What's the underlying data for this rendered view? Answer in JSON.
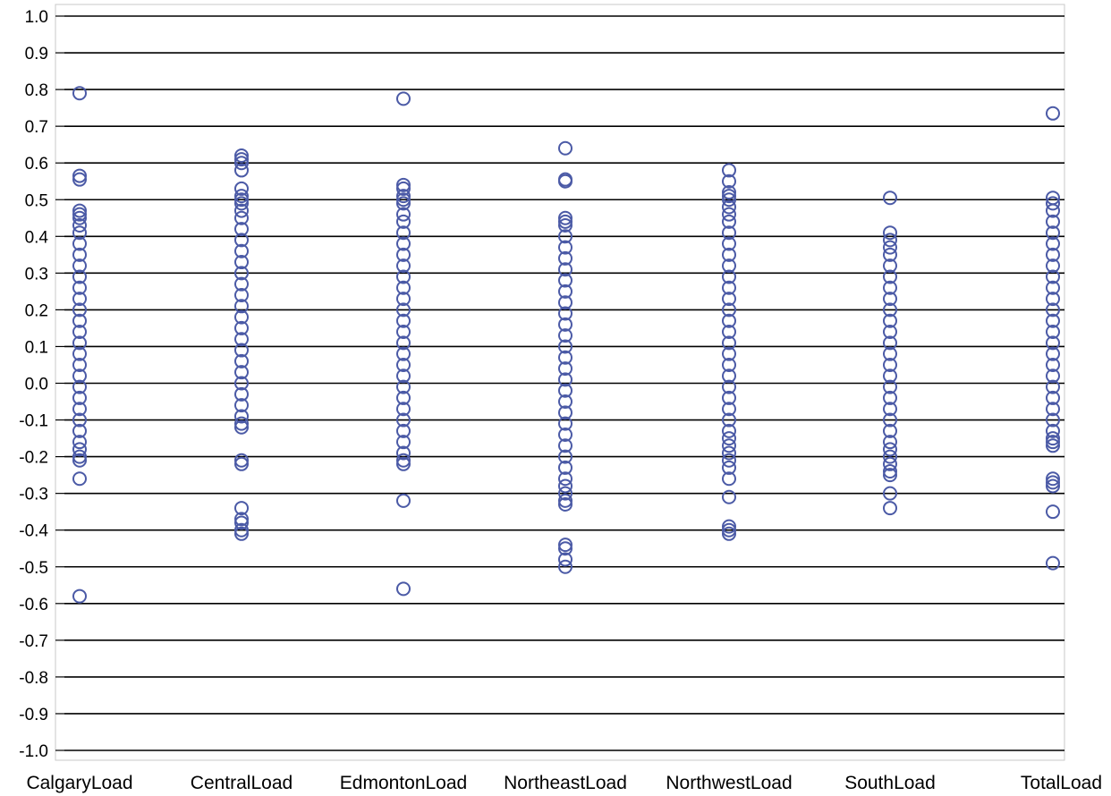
{
  "colors": {
    "marker": "#4b5aa6",
    "gridline": "#000000",
    "frame": "#c8c8c8",
    "background": "#ffffff"
  },
  "chart_data": {
    "type": "scatter",
    "title": "",
    "xlabel": "",
    "ylabel": "",
    "ylim": [
      -1.0,
      1.0
    ],
    "grid": true,
    "marker": "open-circle",
    "y_ticks": [
      "1.0",
      "0.9",
      "0.8",
      "0.7",
      "0.6",
      "0.5",
      "0.4",
      "0.3",
      "0.2",
      "0.1",
      "0.0",
      "-0.1",
      "-0.2",
      "-0.3",
      "-0.4",
      "-0.5",
      "-0.6",
      "-0.7",
      "-0.8",
      "-0.9",
      "-1.0"
    ],
    "categories": [
      "CalgaryLoad",
      "CentralLoad",
      "EdmontonLoad",
      "NortheastLoad",
      "NorthwestLoad",
      "SouthLoad",
      "TotalLoad"
    ],
    "series": [
      {
        "category": "CalgaryLoad",
        "values": [
          0.79,
          0.565,
          0.555,
          0.47,
          0.46,
          0.45,
          0.43,
          0.41,
          0.38,
          0.35,
          0.32,
          0.29,
          0.26,
          0.23,
          0.2,
          0.17,
          0.14,
          0.11,
          0.08,
          0.05,
          0.02,
          -0.01,
          -0.04,
          -0.07,
          -0.1,
          -0.13,
          -0.16,
          -0.18,
          -0.2,
          -0.21,
          -0.26,
          -0.58
        ]
      },
      {
        "category": "CentralLoad",
        "values": [
          0.62,
          0.61,
          0.6,
          0.58,
          0.53,
          0.51,
          0.5,
          0.49,
          0.47,
          0.45,
          0.42,
          0.39,
          0.36,
          0.33,
          0.3,
          0.27,
          0.24,
          0.21,
          0.18,
          0.15,
          0.12,
          0.09,
          0.06,
          0.03,
          0.0,
          -0.03,
          -0.06,
          -0.09,
          -0.11,
          -0.12,
          -0.21,
          -0.22,
          -0.34,
          -0.37,
          -0.38,
          -0.4,
          -0.41
        ]
      },
      {
        "category": "EdmontonLoad",
        "values": [
          0.775,
          0.54,
          0.53,
          0.51,
          0.5,
          0.49,
          0.46,
          0.44,
          0.41,
          0.38,
          0.35,
          0.32,
          0.29,
          0.26,
          0.23,
          0.2,
          0.17,
          0.14,
          0.11,
          0.08,
          0.05,
          0.02,
          -0.01,
          -0.04,
          -0.07,
          -0.1,
          -0.13,
          -0.16,
          -0.19,
          -0.21,
          -0.22,
          -0.32,
          -0.56
        ]
      },
      {
        "category": "NortheastLoad",
        "values": [
          0.64,
          0.555,
          0.55,
          0.45,
          0.44,
          0.43,
          0.4,
          0.37,
          0.34,
          0.31,
          0.28,
          0.25,
          0.22,
          0.19,
          0.16,
          0.13,
          0.1,
          0.07,
          0.04,
          0.01,
          -0.02,
          -0.05,
          -0.08,
          -0.11,
          -0.14,
          -0.17,
          -0.2,
          -0.23,
          -0.26,
          -0.28,
          -0.3,
          -0.32,
          -0.33,
          -0.44,
          -0.45,
          -0.48,
          -0.5
        ]
      },
      {
        "category": "NorthwestLoad",
        "values": [
          0.58,
          0.55,
          0.52,
          0.51,
          0.5,
          0.48,
          0.46,
          0.44,
          0.41,
          0.38,
          0.35,
          0.32,
          0.29,
          0.26,
          0.23,
          0.2,
          0.17,
          0.14,
          0.11,
          0.08,
          0.05,
          0.02,
          -0.01,
          -0.04,
          -0.07,
          -0.1,
          -0.13,
          -0.15,
          -0.17,
          -0.19,
          -0.21,
          -0.23,
          -0.26,
          -0.31,
          -0.39,
          -0.4,
          -0.41
        ]
      },
      {
        "category": "SouthLoad",
        "values": [
          0.505,
          0.41,
          0.39,
          0.37,
          0.35,
          0.32,
          0.29,
          0.26,
          0.23,
          0.2,
          0.17,
          0.14,
          0.11,
          0.08,
          0.05,
          0.02,
          -0.01,
          -0.04,
          -0.07,
          -0.1,
          -0.13,
          -0.16,
          -0.18,
          -0.2,
          -0.22,
          -0.24,
          -0.25,
          -0.3,
          -0.34
        ]
      },
      {
        "category": "TotalLoad",
        "values": [
          0.735,
          0.505,
          0.49,
          0.47,
          0.44,
          0.41,
          0.38,
          0.35,
          0.32,
          0.29,
          0.26,
          0.23,
          0.2,
          0.17,
          0.14,
          0.11,
          0.08,
          0.05,
          0.02,
          -0.01,
          -0.04,
          -0.07,
          -0.1,
          -0.13,
          -0.15,
          -0.16,
          -0.17,
          -0.26,
          -0.27,
          -0.28,
          -0.35,
          -0.49
        ]
      }
    ]
  }
}
